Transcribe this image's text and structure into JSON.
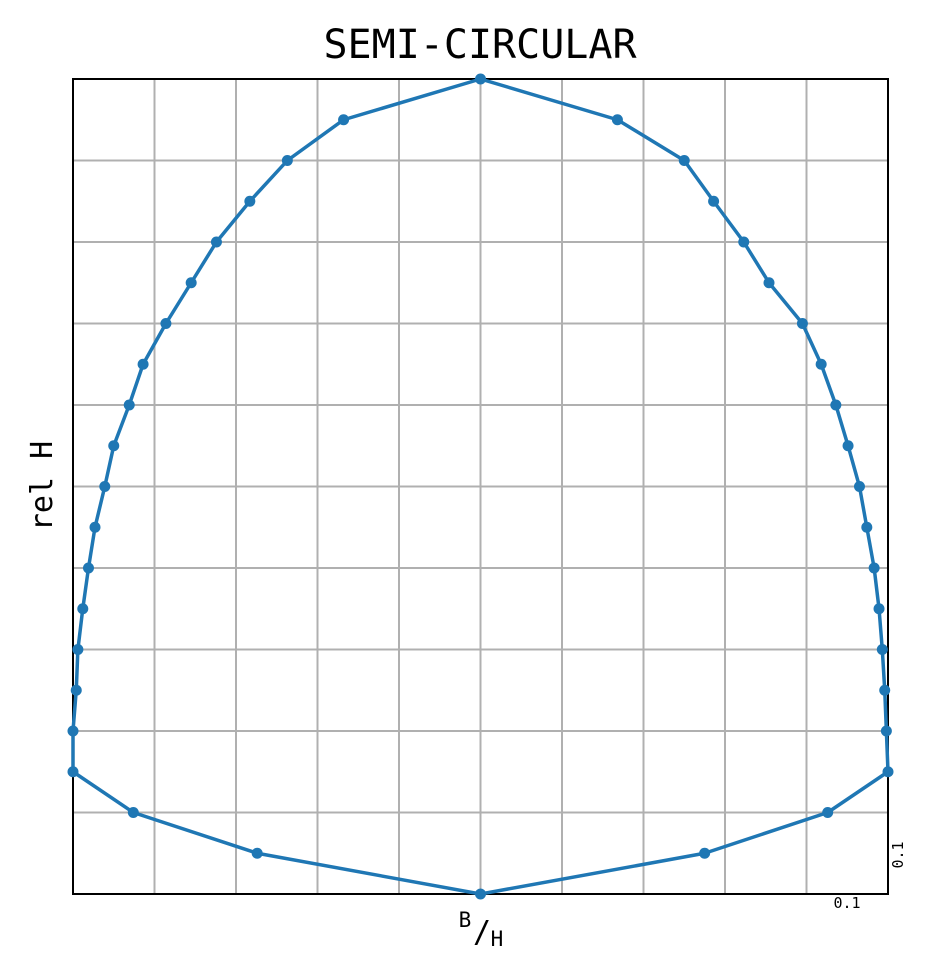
{
  "chart_data": {
    "type": "line",
    "title": "SEMI-CIRCULAR",
    "ylabel": "rel H",
    "xlabel": {
      "num": "B",
      "den": "H",
      "sep": "/"
    },
    "scale_labels": {
      "x": "0.1",
      "y": "0.1"
    },
    "xlim": [
      -0.5,
      0.5
    ],
    "ylim": [
      0,
      1
    ],
    "grid": true,
    "grid_step": 0.1,
    "series": [
      {
        "color": "#1f77b4",
        "marker": "circle",
        "points": [
          [
            0.0,
            0.0
          ],
          [
            0.275,
            0.05
          ],
          [
            0.426,
            0.1
          ],
          [
            0.5,
            0.15
          ],
          [
            0.498,
            0.2
          ],
          [
            0.496,
            0.25
          ],
          [
            0.493,
            0.3
          ],
          [
            0.489,
            0.35
          ],
          [
            0.483,
            0.4
          ],
          [
            0.474,
            0.45
          ],
          [
            0.465,
            0.5
          ],
          [
            0.451,
            0.55
          ],
          [
            0.436,
            0.6
          ],
          [
            0.418,
            0.65
          ],
          [
            0.395,
            0.7
          ],
          [
            0.354,
            0.75
          ],
          [
            0.323,
            0.8
          ],
          [
            0.286,
            0.85
          ],
          [
            0.25,
            0.9
          ],
          [
            0.168,
            0.95
          ],
          [
            0.0,
            1.0
          ],
          [
            -0.168,
            0.95
          ],
          [
            -0.237,
            0.9
          ],
          [
            -0.283,
            0.85
          ],
          [
            -0.324,
            0.8
          ],
          [
            -0.355,
            0.75
          ],
          [
            -0.386,
            0.7
          ],
          [
            -0.414,
            0.65
          ],
          [
            -0.431,
            0.6
          ],
          [
            -0.45,
            0.55
          ],
          [
            -0.461,
            0.5
          ],
          [
            -0.473,
            0.45
          ],
          [
            -0.481,
            0.4
          ],
          [
            -0.488,
            0.35
          ],
          [
            -0.494,
            0.3
          ],
          [
            -0.496,
            0.25
          ],
          [
            -0.5,
            0.2
          ],
          [
            -0.5,
            0.15
          ],
          [
            -0.426,
            0.1
          ],
          [
            -0.274,
            0.05
          ],
          [
            0.0,
            0.0
          ]
        ]
      }
    ]
  }
}
